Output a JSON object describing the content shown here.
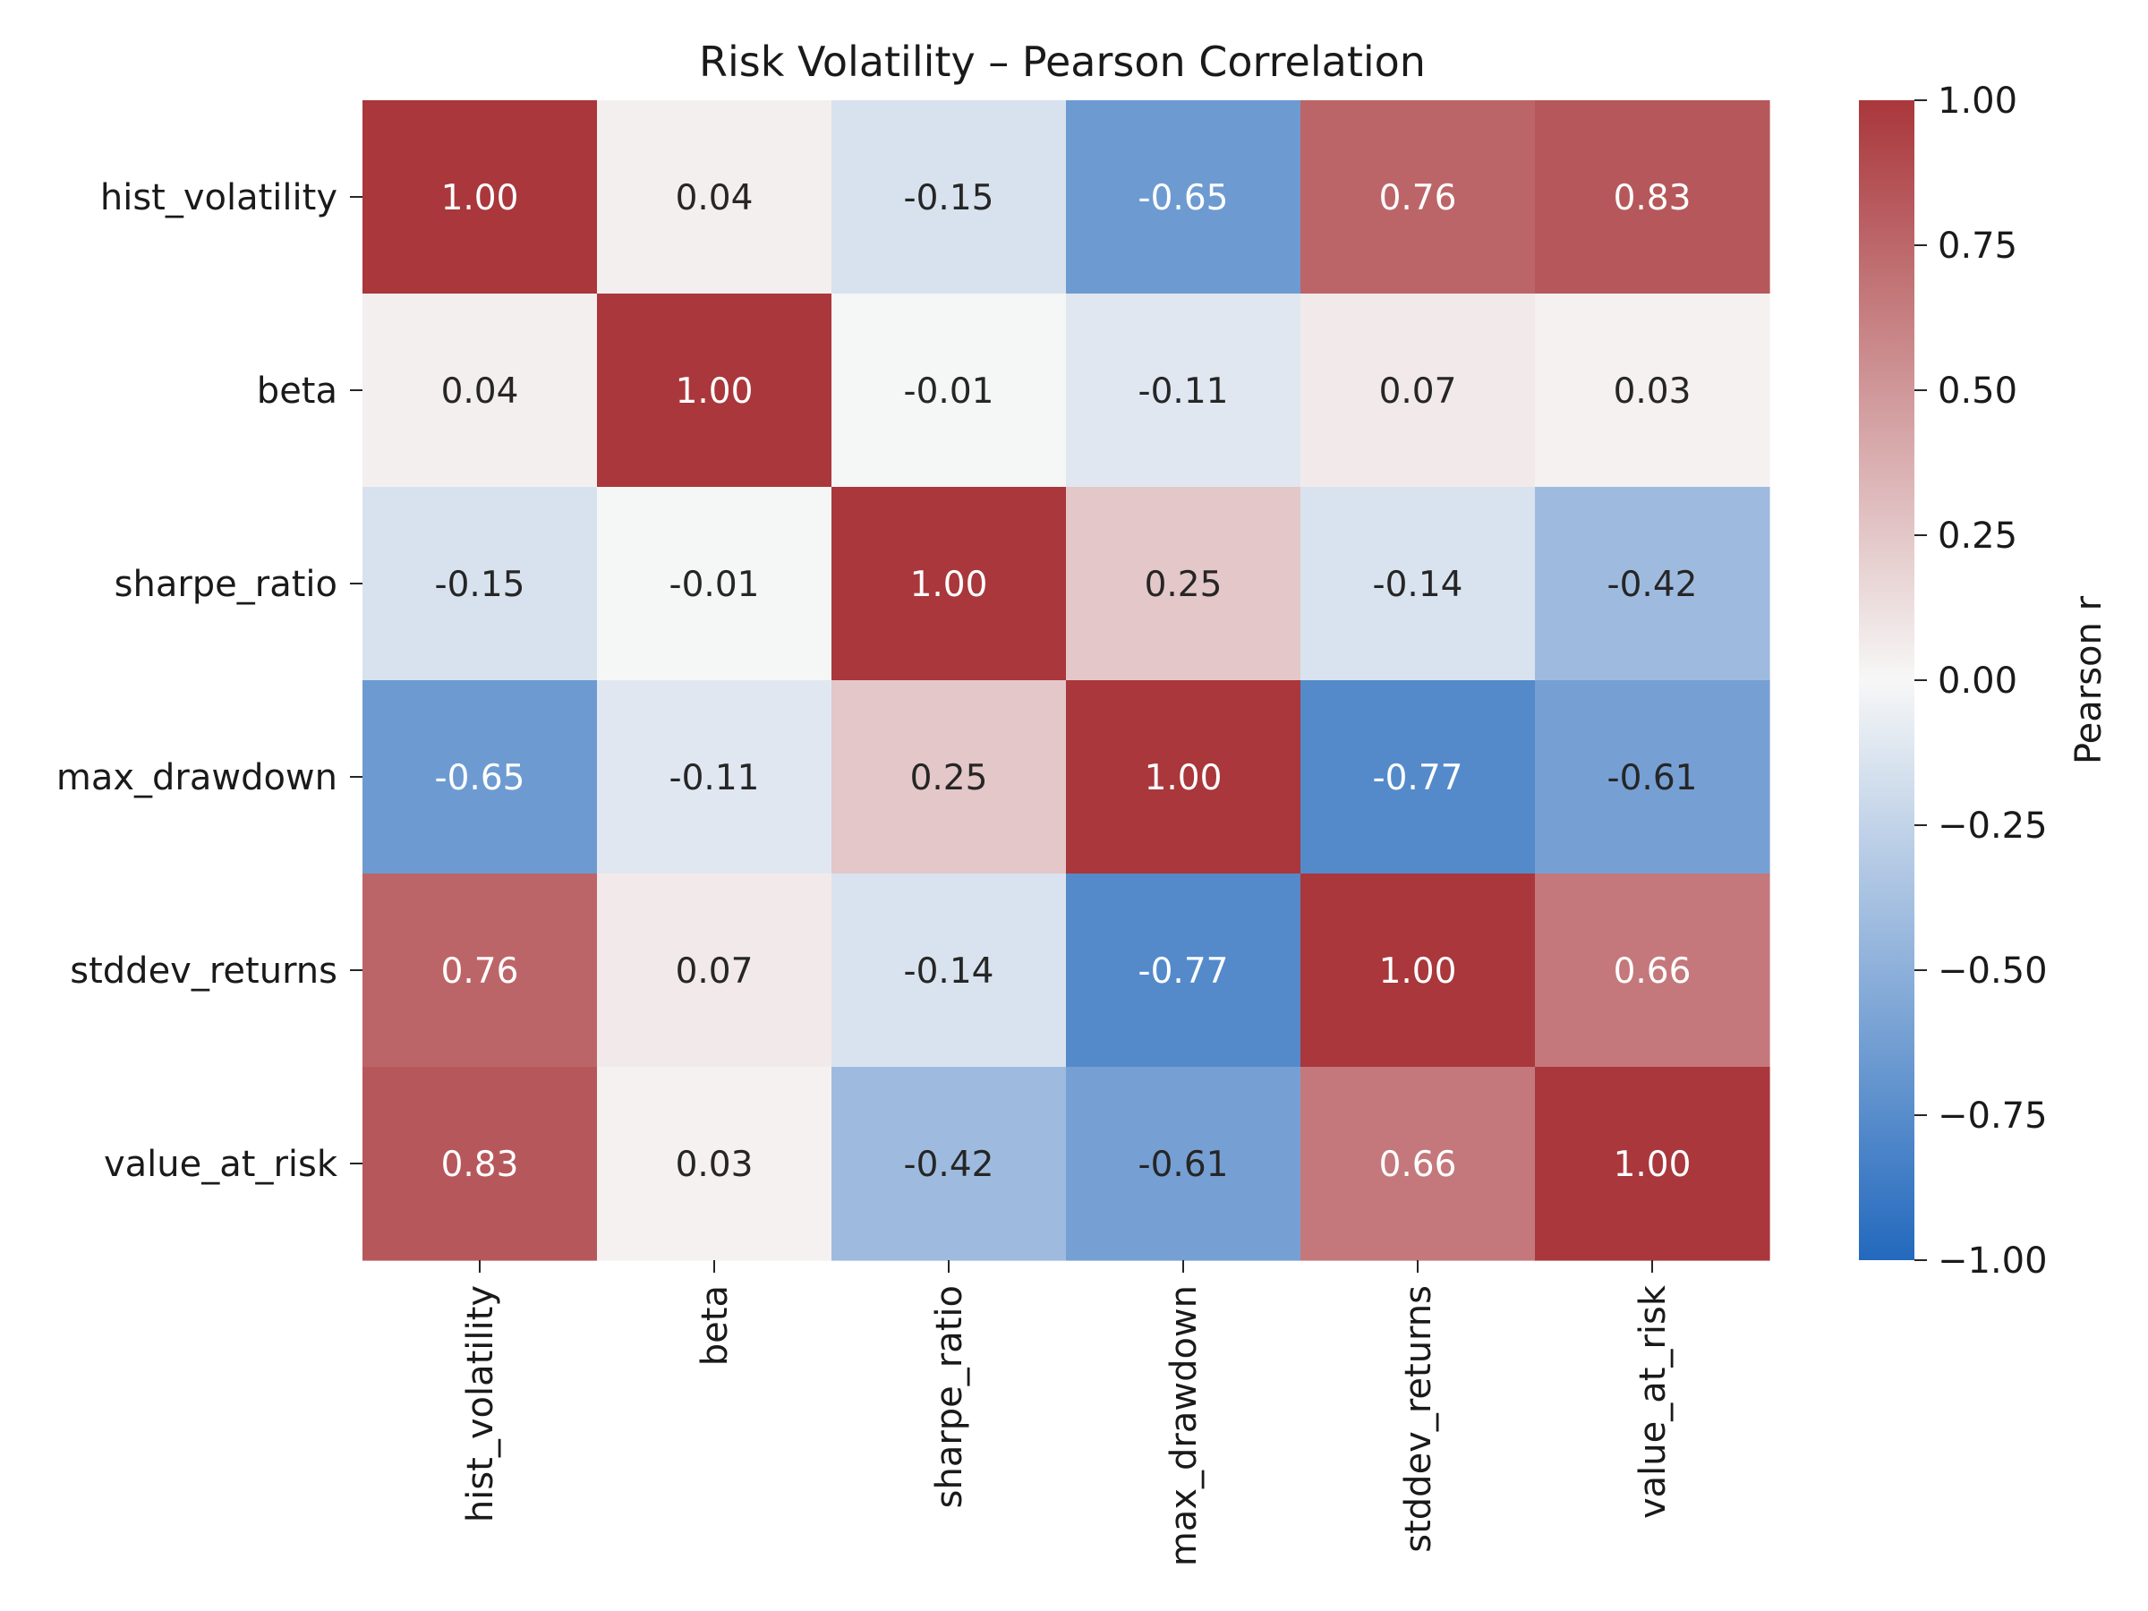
{
  "chart_data": {
    "type": "heatmap",
    "title": "Risk Volatility – Pearson Correlation",
    "row_labels": [
      "hist_volatility",
      "beta",
      "sharpe_ratio",
      "max_drawdown",
      "stddev_returns",
      "value_at_risk"
    ],
    "col_labels": [
      "hist_volatility",
      "beta",
      "sharpe_ratio",
      "max_drawdown",
      "stddev_returns",
      "value_at_risk"
    ],
    "values": [
      [
        1.0,
        0.04,
        -0.15,
        -0.65,
        0.76,
        0.83
      ],
      [
        0.04,
        1.0,
        -0.01,
        -0.11,
        0.07,
        0.03
      ],
      [
        -0.15,
        -0.01,
        1.0,
        0.25,
        -0.14,
        -0.42
      ],
      [
        -0.65,
        -0.11,
        0.25,
        1.0,
        -0.77,
        -0.61
      ],
      [
        0.76,
        0.07,
        -0.14,
        -0.77,
        1.0,
        0.66
      ],
      [
        0.83,
        0.03,
        -0.42,
        -0.61,
        0.66,
        1.0
      ]
    ],
    "value_format": "0.00",
    "colorbar": {
      "label": "Pearson r",
      "range": [
        -1.0,
        1.0
      ],
      "ticks": [
        1.0,
        0.75,
        0.5,
        0.25,
        0.0,
        -0.25,
        -0.5,
        -0.75,
        -1.0
      ],
      "tick_labels": [
        "1.00",
        "0.75",
        "0.50",
        "0.25",
        "0.00",
        "−0.25",
        "−0.50",
        "−0.75",
        "−1.00"
      ],
      "colormap": "vlag",
      "color_low": "#2369bd",
      "color_mid": "#f7f7f7",
      "color_high": "#a9373b"
    },
    "grid": false
  }
}
